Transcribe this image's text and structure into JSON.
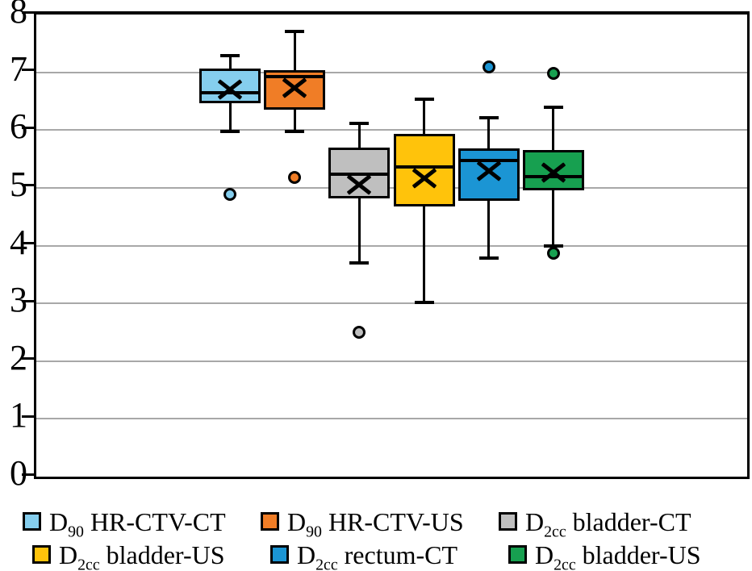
{
  "figure": {
    "background": "#FFFFFF",
    "axis_color": "#000000",
    "grid_color": "#A8A8A8"
  },
  "chart_data": {
    "type": "box",
    "title": "",
    "xlabel": "",
    "ylabel": "",
    "ylim": [
      0,
      8
    ],
    "yticks": [
      "0",
      "1",
      "2",
      "3",
      "4",
      "5",
      "6",
      "7",
      "8"
    ],
    "grid": true,
    "legend_position": "bottom",
    "series": [
      {
        "name": "D90 HR-CTV-CT",
        "label_base": "D",
        "label_sub": "90",
        "label_rest": " HR-CTV-CT",
        "color": "#85CEEE",
        "center_frac": 0.2727,
        "whisker_low": 5.97,
        "q1": 6.46,
        "median": 6.65,
        "q3": 7.07,
        "whisker_high": 7.29,
        "mean": 6.7,
        "outliers": [
          4.88
        ]
      },
      {
        "name": "D90 HR-CTV-US",
        "label_base": "D",
        "label_sub": "90",
        "label_rest": " HR-CTV-US",
        "color": "#F07D26",
        "center_frac": 0.3636,
        "whisker_low": 5.98,
        "q1": 6.35,
        "median": 6.92,
        "q3": 7.03,
        "whisker_high": 7.7,
        "mean": 6.73,
        "outliers": [
          5.18
        ]
      },
      {
        "name": "D2cc bladder-CT",
        "label_base": "D",
        "label_sub": "2cc",
        "label_rest": " bladder-CT",
        "color": "#BFBFBF",
        "center_frac": 0.4545,
        "whisker_low": 3.7,
        "q1": 4.81,
        "median": 5.24,
        "q3": 5.69,
        "whisker_high": 6.12,
        "mean": 5.06,
        "outliers": [
          2.5
        ]
      },
      {
        "name": "D2cc bladder-US",
        "label_base": "D",
        "label_sub": "2cc",
        "label_rest": " bladder-US",
        "color": "#FFC30B",
        "center_frac": 0.5455,
        "whisker_low": 3.01,
        "q1": 4.68,
        "median": 5.36,
        "q3": 5.93,
        "whisker_high": 6.53,
        "mean": 5.16,
        "outliers": []
      },
      {
        "name": "D2cc rectum-CT",
        "label_base": "D",
        "label_sub": "2cc",
        "label_rest": " rectum-CT",
        "color": "#1B95D4",
        "center_frac": 0.6364,
        "whisker_low": 3.79,
        "q1": 4.78,
        "median": 5.47,
        "q3": 5.68,
        "whisker_high": 6.21,
        "mean": 5.29,
        "outliers": [
          7.09
        ]
      },
      {
        "name": "D2cc bladder-US",
        "label_base": "D",
        "label_sub": "2cc",
        "label_rest": " bladder-US",
        "color": "#17A050",
        "center_frac": 0.7273,
        "whisker_low": 4.0,
        "q1": 4.95,
        "median": 5.2,
        "q3": 5.66,
        "whisker_high": 6.4,
        "mean": 5.27,
        "outliers": [
          6.98,
          3.87
        ]
      }
    ]
  },
  "legend": {
    "rows": [
      [
        0,
        1,
        2
      ],
      [
        3,
        4,
        5
      ]
    ]
  }
}
